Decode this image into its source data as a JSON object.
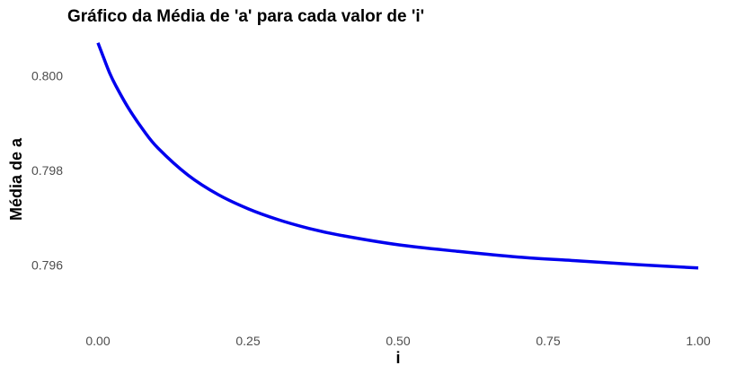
{
  "chart_data": {
    "type": "line",
    "title": "Gráfico da Média de 'a' para cada valor de 'i'",
    "xlabel": "i",
    "ylabel": "Média de a",
    "xlim": [
      0,
      1
    ],
    "ylim": [
      0.7948,
      0.8008
    ],
    "x_ticks": [
      0,
      0.25,
      0.5,
      0.75,
      1
    ],
    "x_tick_labels": [
      "0.00",
      "0.25",
      "0.50",
      "0.75",
      "1.00"
    ],
    "y_ticks": [
      0.796,
      0.798,
      0.8
    ],
    "y_tick_labels": [
      "0.796",
      "0.798",
      "0.800"
    ],
    "grid": false,
    "legend": "none",
    "series": [
      {
        "color": "#0000ee",
        "x": [
          0,
          0.01,
          0.02,
          0.03,
          0.05,
          0.075,
          0.1,
          0.15,
          0.2,
          0.25,
          0.3,
          0.35,
          0.4,
          0.5,
          0.6,
          0.7,
          0.8,
          0.9,
          1.0
        ],
        "y": [
          0.80069,
          0.80036,
          0.80004,
          0.79978,
          0.79933,
          0.79886,
          0.79847,
          0.7979,
          0.79749,
          0.79719,
          0.79696,
          0.79678,
          0.79664,
          0.79643,
          0.79629,
          0.79617,
          0.79609,
          0.79601,
          0.79594
        ]
      }
    ]
  }
}
